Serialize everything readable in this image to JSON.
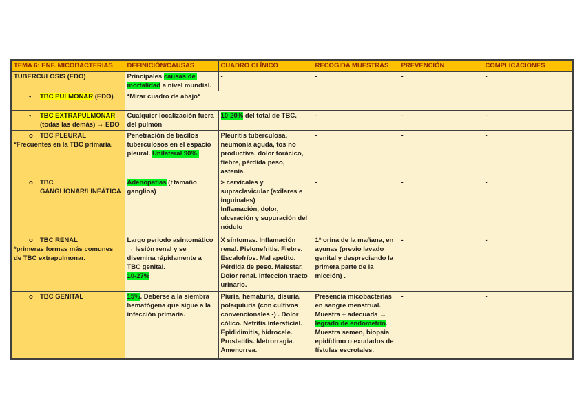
{
  "colors": {
    "header_bg": "#FFC000",
    "header_text": "#8B2804",
    "label_bg": "#FFD966",
    "cell_bg": "#FDF2D0",
    "body_text": "#211D18",
    "border": "#404040",
    "highlight_green": "#00F01E",
    "highlight_yellow": "#FFFF00"
  },
  "table": {
    "headers": [
      "TEMA 6: ENF. MICOBACTERIAS",
      "DEFINICIÓN/CAUSAS",
      "CUADRO CLÍNICO",
      "RECOGIDA MUESTRAS",
      "PREVENCIÓN",
      "COMPLICACIONES"
    ],
    "rows": [
      {
        "name": "tuberculosis",
        "label": {
          "title": [
            {
              "t": "TUBERCULOSIS (EDO)"
            }
          ]
        },
        "cells": [
          [
            {
              "t": "Principales "
            },
            {
              "t": "causas de mortalidad",
              "hl": "green"
            },
            {
              "t": " a nivel mundial."
            }
          ],
          [
            {
              "t": "-"
            }
          ],
          [
            {
              "t": "-"
            }
          ],
          [
            {
              "t": "-"
            }
          ],
          [
            {
              "t": "-"
            }
          ]
        ]
      },
      {
        "name": "tbc-pulmonar",
        "label": {
          "bullet": "•",
          "title": [
            {
              "t": "TBC PULMONAR",
              "hl": "yellow"
            },
            {
              "t": " (EDO)"
            }
          ]
        },
        "merged": [
          {
            "t": "*Mirar cuadro de abajo*"
          }
        ]
      },
      {
        "name": "tbc-extrapulmonar",
        "label": {
          "bullet": "•",
          "title": [
            {
              "t": "TBC EXTRAPULMONAR",
              "hl": "yellow"
            },
            {
              "t": "\n(todas las demás) → EDO"
            }
          ]
        },
        "cells": [
          [
            {
              "t": "Cualquier localización fuera del pulmón"
            }
          ],
          [
            {
              "t": "10-20%",
              "hl": "green"
            },
            {
              "t": " del total de TBC."
            }
          ],
          [
            {
              "t": "-"
            }
          ],
          [
            {
              "t": "-"
            }
          ],
          [
            {
              "t": "-"
            }
          ]
        ]
      },
      {
        "name": "tbc-pleural",
        "label": {
          "bullet": "o",
          "title": [
            {
              "t": "TBC PLEURAL"
            }
          ],
          "note": "*Frecuentes en la TBC primaria."
        },
        "cells": [
          [
            {
              "t": "Penetración de bacilos tuberculosos en el espacio pleural. "
            },
            {
              "t": "Unilateral 90%.",
              "hl": "green"
            }
          ],
          [
            {
              "t": "Pleuritis tuberculosa, neumonía aguda, tos no productiva, dolor torácico, fiebre, pérdida peso, astenia."
            }
          ],
          [
            {
              "t": "-"
            }
          ],
          [
            {
              "t": "-"
            }
          ],
          [
            {
              "t": "-"
            }
          ]
        ]
      },
      {
        "name": "tbc-ganglionar",
        "label": {
          "bullet": "o",
          "title": [
            {
              "t": "TBC GANGLIONAR/LINFÁTICA"
            }
          ]
        },
        "cells": [
          [
            {
              "t": "Adenopatías",
              "hl": "green"
            },
            {
              "t": " (↑tamaño ganglios)"
            }
          ],
          [
            {
              "t": "> cervicales y supraclavicular (axilares e inguinales)\nInflamación, dolor, ulceración y supuración del nódulo"
            }
          ],
          [
            {
              "t": "-"
            }
          ],
          [
            {
              "t": "-"
            }
          ],
          [
            {
              "t": "-"
            }
          ]
        ]
      },
      {
        "name": "tbc-renal",
        "label": {
          "bullet": "o",
          "title": [
            {
              "t": "TBC RENAL"
            }
          ],
          "note": "*primeras formas más comunes de TBC extrapulmonar."
        },
        "cells": [
          [
            {
              "t": "Largo periodo asintomático → lesión renal y se disemina rápidamente a TBC genital.\n"
            },
            {
              "t": "10-27%",
              "hl": "green"
            }
          ],
          [
            {
              "t": "X síntomas. Inflamación renal. Pielonefritis. Fiebre. Escalofríos. Mal apetito. Pérdida de peso. Malestar. Dolor renal. Infección tracto urinario."
            }
          ],
          [
            {
              "t": "1ª orina de la mañana, en ayunas (previo lavado genital y despreciando la primera parte de la micción) ."
            }
          ],
          [
            {
              "t": "-"
            }
          ],
          [
            {
              "t": "-"
            }
          ]
        ]
      },
      {
        "name": "tbc-genital",
        "label": {
          "bullet": "o",
          "title": [
            {
              "t": "TBC GENITAL"
            }
          ]
        },
        "cells": [
          [
            {
              "t": "15%",
              "hl": "green"
            },
            {
              "t": ". Deberse a la siembra hematógena que sigue a la infección primaria."
            }
          ],
          [
            {
              "t": "Piuria, hematuria, disuria, polaquiuria (con cultivos convencionales -) . Dolor cólico. Nefritis intersticial. Epididimitis, hidrocele. Prostatitis. Metrorragia. Amenorrea."
            }
          ],
          [
            {
              "t": "Presencia micobacterias en sangre menstrual. Muestra + adecuada → "
            },
            {
              "t": "legrado de endometrio",
              "hl": "green"
            },
            {
              "t": ". Muestra semen, biopsia epidídimo o exudados de fístulas escrotales."
            }
          ],
          [
            {
              "t": "-"
            }
          ],
          [
            {
              "t": "-"
            }
          ]
        ]
      }
    ]
  }
}
